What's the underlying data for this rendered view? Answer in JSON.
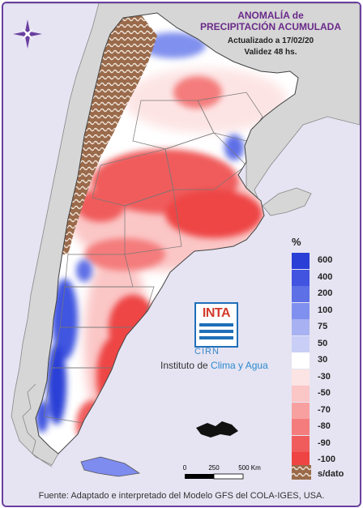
{
  "header": {
    "title_line1": "ANOMALÍA de",
    "title_line2": "PRECIPITACIÓN ACUMULADA",
    "updated": "Actualizado a 17/02/20",
    "validity": "Validez 48 hs."
  },
  "legend": {
    "unit": "%",
    "items": [
      {
        "label": "600",
        "color": "#2a3fd6"
      },
      {
        "label": "400",
        "color": "#4054e0"
      },
      {
        "label": "200",
        "color": "#5e70e6"
      },
      {
        "label": "100",
        "color": "#8090ee"
      },
      {
        "label": "75",
        "color": "#a8b2f2"
      },
      {
        "label": "50",
        "color": "#c8cef6"
      },
      {
        "label": "30",
        "color": "#ffffff"
      },
      {
        "label": "-30",
        "color": "#fde4e4"
      },
      {
        "label": "-50",
        "color": "#fbc6c6"
      },
      {
        "label": "-70",
        "color": "#f8a0a0"
      },
      {
        "label": "-80",
        "color": "#f47c7c"
      },
      {
        "label": "-90",
        "color": "#f05c5c"
      },
      {
        "label": "-100",
        "color": "#ee4444"
      }
    ],
    "no_data_label": "s/dato",
    "no_data_color": "#9a6a4a"
  },
  "logo": {
    "inta": "INTA",
    "cirn": "CIRN",
    "instituto_prefix": "Instituto de ",
    "instituto_highlight": "Clima y Agua"
  },
  "scale": {
    "ticks": [
      "0",
      "250",
      "500 Km"
    ]
  },
  "footer": {
    "source": "Fuente: Adaptado e interpretado del Modelo GFS del COLA-IGES, USA."
  }
}
